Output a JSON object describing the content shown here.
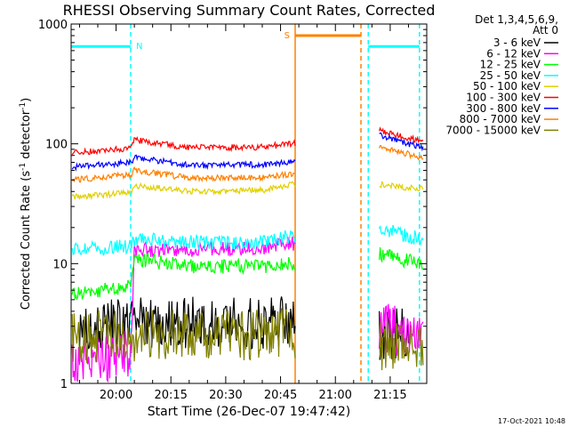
{
  "chart_data": {
    "type": "line",
    "title": "RHESSI Observing Summary Count Rates, Corrected",
    "xlabel": "Start Time (26-Dec-07 19:47:42)",
    "ylabel_main": "Corrected Count Rate (s",
    "ylabel_sup1": "-1",
    "ylabel_mid": " detector",
    "ylabel_sup2": "-1",
    "ylabel_end": ")",
    "yscale": "log",
    "ylim": [
      1,
      1000
    ],
    "xlim": [
      "19:47:42",
      "21:25:00"
    ],
    "x_ticks": [
      "20:00",
      "20:15",
      "20:30",
      "20:45",
      "21:00",
      "21:15"
    ],
    "y_ticks": [
      "1",
      "10",
      "100",
      "1000"
    ],
    "grid": false,
    "legend_position": "right",
    "legend_header": [
      "Det 1,3,4,5,6,9,",
      "Att 0"
    ],
    "footer": "17-Oct-2021 10:48",
    "flags": [
      {
        "label": "N",
        "color": "#00ffff",
        "segments": [
          [
            "19:47:42",
            "20:04:00"
          ],
          [
            "21:09:00",
            "21:23:00"
          ]
        ],
        "level": 650
      },
      {
        "label": "S",
        "color": "#ff8000",
        "segments": [
          [
            "20:49:00",
            "21:07:00"
          ]
        ],
        "level": 800
      }
    ],
    "series": [
      {
        "name": "3 - 6 keV",
        "color": "#000000",
        "x": [
          "19:50",
          "20:00",
          "20:05",
          "20:20",
          "20:40",
          "20:48",
          "21:12",
          "21:20"
        ],
        "y": [
          2.8,
          3.1,
          3.2,
          3.2,
          3.2,
          3.4,
          2.5,
          2.6
        ]
      },
      {
        "name": "6 - 12 keV",
        "color": "#ff00ff",
        "x": [
          "19:48",
          "20:04",
          "20:05",
          "20:20",
          "20:40",
          "20:48",
          "21:12",
          "21:20",
          "21:24"
        ],
        "y": [
          1.6,
          1.7,
          13,
          13,
          13.5,
          15,
          3,
          2.5,
          2.4
        ]
      },
      {
        "name": "12 - 25 keV",
        "color": "#00ff00",
        "x": [
          "19:48",
          "19:55",
          "20:04",
          "20:05",
          "20:20",
          "20:40",
          "20:48",
          "21:12",
          "21:20",
          "21:24"
        ],
        "y": [
          5.5,
          6,
          6.5,
          11,
          9.5,
          9.5,
          10,
          12,
          10.5,
          10
        ]
      },
      {
        "name": "25 - 50 keV",
        "color": "#00ffff",
        "x": [
          "19:48",
          "20:04",
          "20:05",
          "20:20",
          "20:40",
          "20:48",
          "21:12",
          "21:20",
          "21:24"
        ],
        "y": [
          13,
          14,
          16,
          15,
          15,
          17,
          20,
          17,
          16
        ]
      },
      {
        "name": "50 - 100 keV",
        "color": "#e0d000",
        "x": [
          "19:48",
          "20:04",
          "20:05",
          "20:20",
          "20:40",
          "20:48",
          "21:12",
          "21:20",
          "21:24"
        ],
        "y": [
          36,
          39,
          45,
          40,
          41,
          46,
          46,
          43,
          42
        ]
      },
      {
        "name": "100 - 300 keV",
        "color": "#ff0000",
        "x": [
          "19:48",
          "20:04",
          "20:05",
          "20:20",
          "20:40",
          "20:48",
          "21:12",
          "21:20",
          "21:24"
        ],
        "y": [
          84,
          92,
          108,
          93,
          94,
          100,
          130,
          112,
          103
        ]
      },
      {
        "name": "300 - 800 keV",
        "color": "#0000ff",
        "x": [
          "19:48",
          "20:04",
          "20:05",
          "20:20",
          "20:40",
          "20:48",
          "21:12",
          "21:20",
          "21:24"
        ],
        "y": [
          64,
          70,
          77,
          66,
          67,
          70,
          118,
          100,
          92
        ]
      },
      {
        "name": "800 - 7000 keV",
        "color": "#ff8000",
        "x": [
          "19:48",
          "20:04",
          "20:05",
          "20:20",
          "20:40",
          "20:48",
          "21:12",
          "21:20",
          "21:24"
        ],
        "y": [
          50,
          55,
          60,
          52,
          52,
          56,
          96,
          82,
          74
        ]
      },
      {
        "name": "7000 - 15000 keV",
        "color": "#808000",
        "x": [
          "19:48",
          "20:00",
          "20:20",
          "20:40",
          "20:48",
          "21:12",
          "21:20",
          "21:24"
        ],
        "y": [
          2.4,
          2.5,
          2.5,
          2.5,
          2.6,
          2.0,
          2.0,
          2.0
        ]
      }
    ]
  }
}
